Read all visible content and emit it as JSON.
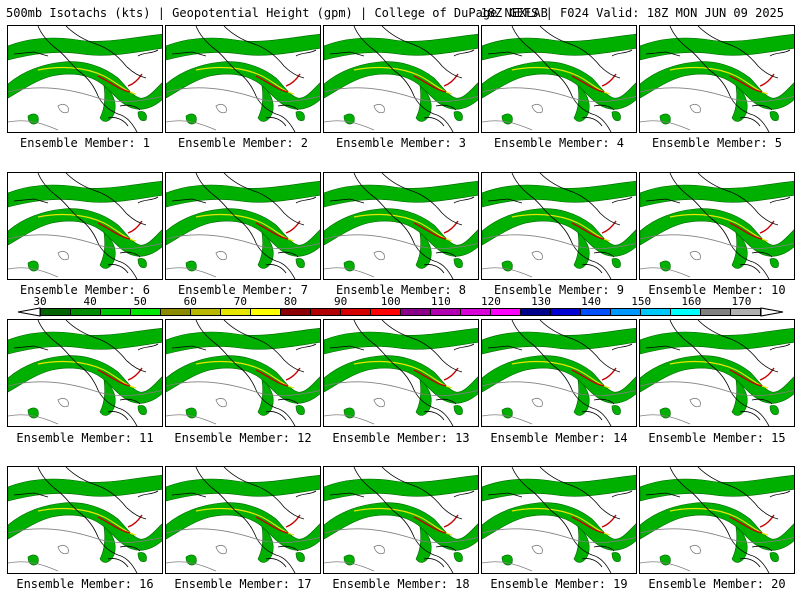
{
  "header": {
    "left": "500mb Isotachs (kts) | Geopotential Height (gpm) | College of DuPage NEXLAB",
    "right": "18Z GEFS | F024 Valid: 18Z MON JUN 09 2025"
  },
  "members": [
    "Ensemble Member: 1",
    "Ensemble Member: 2",
    "Ensemble Member: 3",
    "Ensemble Member: 4",
    "Ensemble Member: 5",
    "Ensemble Member: 6",
    "Ensemble Member: 7",
    "Ensemble Member: 8",
    "Ensemble Member: 9",
    "Ensemble Member: 10",
    "Ensemble Member: 11",
    "Ensemble Member: 12",
    "Ensemble Member: 13",
    "Ensemble Member: 14",
    "Ensemble Member: 15",
    "Ensemble Member: 16",
    "Ensemble Member: 17",
    "Ensemble Member: 18",
    "Ensemble Member: 19",
    "Ensemble Member: 20"
  ],
  "colorbar": {
    "ticks": [
      "30",
      "40",
      "50",
      "60",
      "70",
      "80",
      "90",
      "100",
      "110",
      "120",
      "130",
      "140",
      "150",
      "160",
      "170"
    ],
    "colors": [
      "#006400",
      "#008c00",
      "#00c800",
      "#00e600",
      "#8b8b00",
      "#b8b800",
      "#e6e600",
      "#ffff00",
      "#8b0000",
      "#b00000",
      "#d40000",
      "#ff0000",
      "#8b008b",
      "#b000b0",
      "#d800d8",
      "#ff00ff",
      "#00008b",
      "#0000d0",
      "#0050ff",
      "#0096ff",
      "#00c8ff",
      "#00ffff",
      "#808080",
      "#b0b0b0"
    ]
  }
}
